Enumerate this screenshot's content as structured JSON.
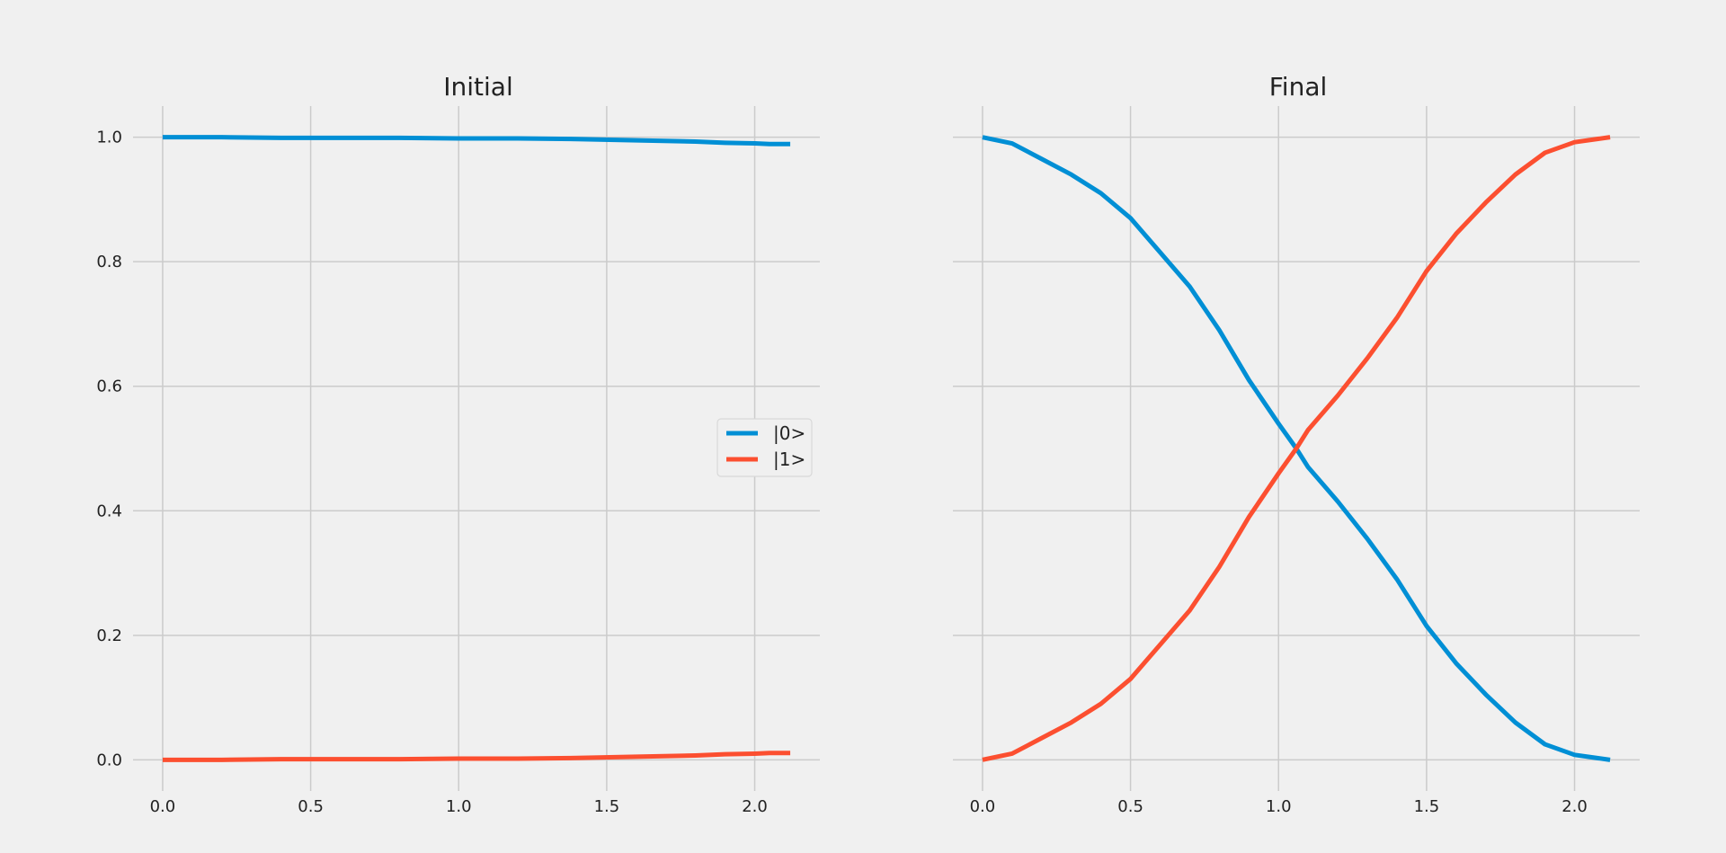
{
  "colors": {
    "zero": "#008fd5",
    "one": "#fc4f30"
  },
  "chart_data": [
    {
      "type": "line",
      "title": "Initial",
      "xlim": [
        -0.1,
        2.22
      ],
      "ylim": [
        -0.05,
        1.05
      ],
      "xticks": [
        "0.0",
        "0.5",
        "1.0",
        "1.5",
        "2.0"
      ],
      "yticks": [
        "0.0",
        "0.2",
        "0.4",
        "0.6",
        "0.8",
        "1.0"
      ],
      "grid": true,
      "legend": {
        "placement": "center-right",
        "entries": [
          "|0>",
          "|1>"
        ]
      },
      "x": [
        0.0,
        0.2,
        0.4,
        0.6,
        0.8,
        1.0,
        1.2,
        1.4,
        1.6,
        1.8,
        1.9,
        2.0,
        2.05,
        2.12
      ],
      "series": [
        {
          "name": "|0>",
          "color": "#008fd5",
          "values": [
            1.0,
            1.0,
            0.999,
            0.999,
            0.999,
            0.998,
            0.998,
            0.997,
            0.995,
            0.993,
            0.991,
            0.99,
            0.989,
            0.989
          ]
        },
        {
          "name": "|1>",
          "color": "#fc4f30",
          "values": [
            0.0,
            0.0,
            0.001,
            0.001,
            0.001,
            0.002,
            0.002,
            0.003,
            0.005,
            0.007,
            0.009,
            0.01,
            0.011,
            0.011
          ]
        }
      ]
    },
    {
      "type": "line",
      "title": "Final",
      "xlim": [
        -0.1,
        2.22
      ],
      "ylim": [
        -0.05,
        1.05
      ],
      "xticks": [
        "0.0",
        "0.5",
        "1.0",
        "1.5",
        "2.0"
      ],
      "yticks": [
        "0.0",
        "0.2",
        "0.4",
        "0.6",
        "0.8",
        "1.0"
      ],
      "grid": true,
      "x": [
        0.0,
        0.1,
        0.2,
        0.3,
        0.4,
        0.5,
        0.6,
        0.7,
        0.8,
        0.9,
        1.0,
        1.06,
        1.1,
        1.2,
        1.3,
        1.4,
        1.5,
        1.6,
        1.7,
        1.8,
        1.9,
        2.0,
        2.12
      ],
      "series": [
        {
          "name": "|0>",
          "color": "#008fd5",
          "values": [
            1.0,
            0.99,
            0.965,
            0.94,
            0.91,
            0.87,
            0.815,
            0.76,
            0.69,
            0.61,
            0.54,
            0.5,
            0.47,
            0.415,
            0.355,
            0.29,
            0.215,
            0.155,
            0.105,
            0.06,
            0.025,
            0.008,
            0.0
          ]
        },
        {
          "name": "|1>",
          "color": "#fc4f30",
          "values": [
            0.0,
            0.01,
            0.035,
            0.06,
            0.09,
            0.13,
            0.185,
            0.24,
            0.31,
            0.39,
            0.46,
            0.5,
            0.53,
            0.585,
            0.645,
            0.71,
            0.785,
            0.845,
            0.895,
            0.94,
            0.975,
            0.992,
            1.0
          ]
        }
      ]
    }
  ]
}
